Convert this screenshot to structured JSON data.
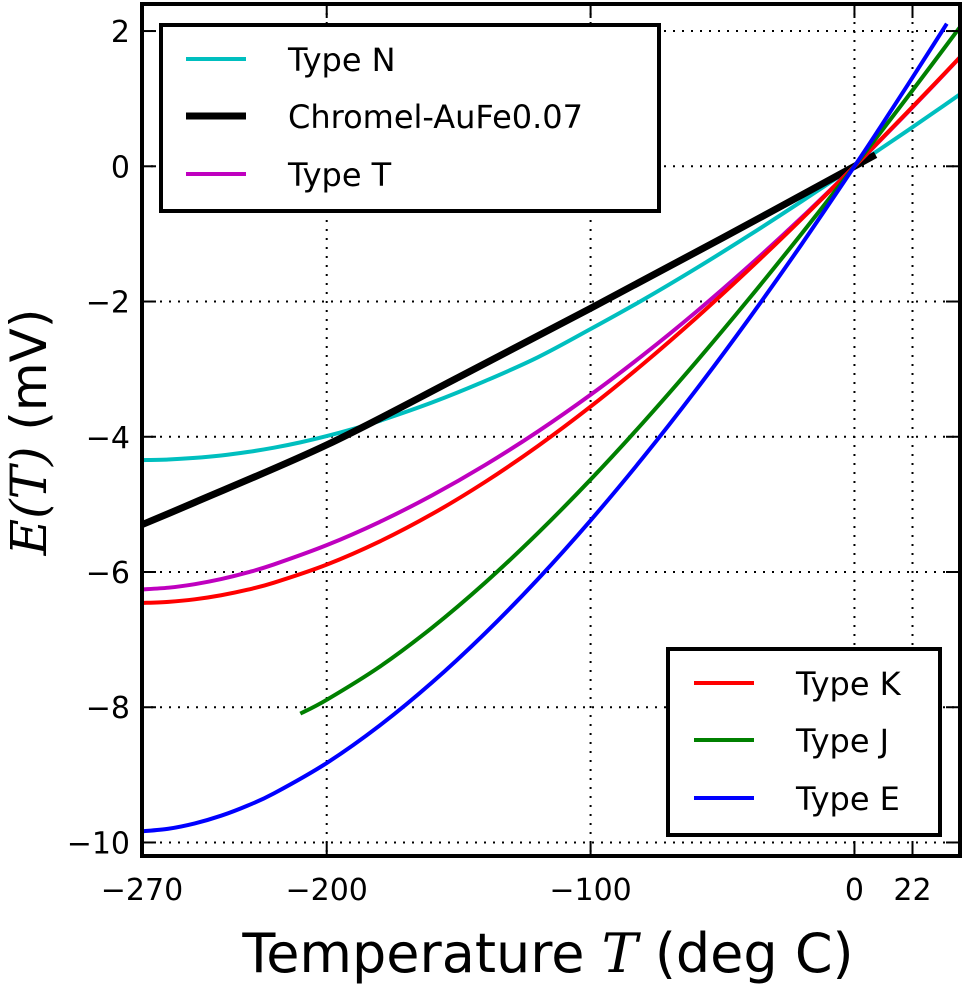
{
  "chart_data": {
    "type": "line",
    "xlabel_prefix": "Temperature ",
    "xlabel_math": "T",
    "xlabel_suffix": " (deg C)",
    "ylabel_math": "E(T)",
    "ylabel_suffix": " (mV)",
    "xlim": [
      -270,
      40
    ],
    "ylim": [
      -10.2,
      2.4
    ],
    "xticks": [
      -270,
      -200,
      -100,
      0,
      22
    ],
    "xtick_labels": [
      "−270",
      "−200",
      "−100",
      "0",
      "22"
    ],
    "yticks": [
      -10,
      -8,
      -6,
      -4,
      -2,
      0,
      2
    ],
    "ytick_labels": [
      "−10",
      "−8",
      "−6",
      "−4",
      "−2",
      "0",
      "2"
    ],
    "grid": true,
    "grid_style": "dotted",
    "legends": [
      {
        "placement": "top-left",
        "entries": [
          "Type N",
          "Chromel-AuFe0.07",
          "Type T"
        ]
      },
      {
        "placement": "bottom-right",
        "entries": [
          "Type K",
          "Type J",
          "Type E"
        ]
      }
    ],
    "series": [
      {
        "name": "Type N",
        "color": "#00bfbf",
        "width": 4,
        "x": [
          -270,
          -260,
          -250,
          -240,
          -230,
          -220,
          -210,
          -200,
          -190,
          -180,
          -160,
          -140,
          -120,
          -100,
          -80,
          -60,
          -40,
          -20,
          0,
          10,
          20,
          30,
          40
        ],
        "y": [
          -4.345,
          -4.336,
          -4.313,
          -4.277,
          -4.226,
          -4.162,
          -4.083,
          -3.99,
          -3.884,
          -3.766,
          -3.492,
          -3.176,
          -2.825,
          -2.407,
          -1.972,
          -1.509,
          -1.023,
          -0.518,
          0.0,
          0.261,
          0.525,
          0.793,
          1.065
        ]
      },
      {
        "name": "Chromel-AuFe0.07",
        "color": "#000000",
        "width": 7,
        "x": [
          -270,
          -250,
          -200,
          -150,
          -100,
          -50,
          0,
          8
        ],
        "y": [
          -5.3,
          -4.97,
          -4.12,
          -3.12,
          -2.1,
          -1.06,
          0.0,
          0.17
        ]
      },
      {
        "name": "Type T",
        "color": "#bf00bf",
        "width": 4,
        "x": [
          -270,
          -260,
          -250,
          -240,
          -230,
          -220,
          -200,
          -180,
          -160,
          -140,
          -120,
          -100,
          -80,
          -60,
          -40,
          -20,
          0,
          10,
          20,
          30,
          40
        ],
        "y": [
          -6.258,
          -6.232,
          -6.18,
          -6.105,
          -6.007,
          -5.888,
          -5.603,
          -5.261,
          -4.865,
          -4.419,
          -3.923,
          -3.379,
          -2.788,
          -2.153,
          -1.475,
          -0.757,
          0.0,
          0.391,
          0.79,
          1.196,
          1.612
        ]
      },
      {
        "name": "Type K",
        "color": "#ff0000",
        "width": 4,
        "x": [
          -270,
          -260,
          -250,
          -240,
          -230,
          -220,
          -200,
          -180,
          -160,
          -140,
          -120,
          -100,
          -80,
          -60,
          -40,
          -20,
          0,
          10,
          20,
          30,
          40
        ],
        "y": [
          -6.458,
          -6.441,
          -6.404,
          -6.344,
          -6.262,
          -6.158,
          -5.891,
          -5.55,
          -5.141,
          -4.669,
          -4.138,
          -3.554,
          -2.92,
          -2.243,
          -1.527,
          -0.778,
          0.0,
          0.397,
          0.798,
          1.203,
          1.612
        ]
      },
      {
        "name": "Type J",
        "color": "#008000",
        "width": 4,
        "x": [
          -210,
          -200,
          -180,
          -160,
          -140,
          -120,
          -100,
          -80,
          -60,
          -40,
          -20,
          0,
          10,
          20,
          30,
          40
        ],
        "y": [
          -8.095,
          -7.89,
          -7.403,
          -6.821,
          -6.159,
          -5.426,
          -4.633,
          -3.786,
          -2.893,
          -1.961,
          -0.995,
          0.0,
          0.507,
          1.019,
          1.537,
          2.059
        ]
      },
      {
        "name": "Type E",
        "color": "#0000ff",
        "width": 4,
        "x": [
          -270,
          -260,
          -250,
          -240,
          -230,
          -220,
          -200,
          -180,
          -160,
          -140,
          -120,
          -100,
          -80,
          -60,
          -40,
          -20,
          0,
          10,
          20,
          30,
          35
        ],
        "y": [
          -9.835,
          -9.797,
          -9.718,
          -9.604,
          -9.455,
          -9.274,
          -8.825,
          -8.273,
          -7.631,
          -6.907,
          -6.107,
          -5.237,
          -4.302,
          -3.306,
          -2.255,
          -1.152,
          0.0,
          0.591,
          1.192,
          1.801,
          2.109
        ]
      }
    ]
  }
}
